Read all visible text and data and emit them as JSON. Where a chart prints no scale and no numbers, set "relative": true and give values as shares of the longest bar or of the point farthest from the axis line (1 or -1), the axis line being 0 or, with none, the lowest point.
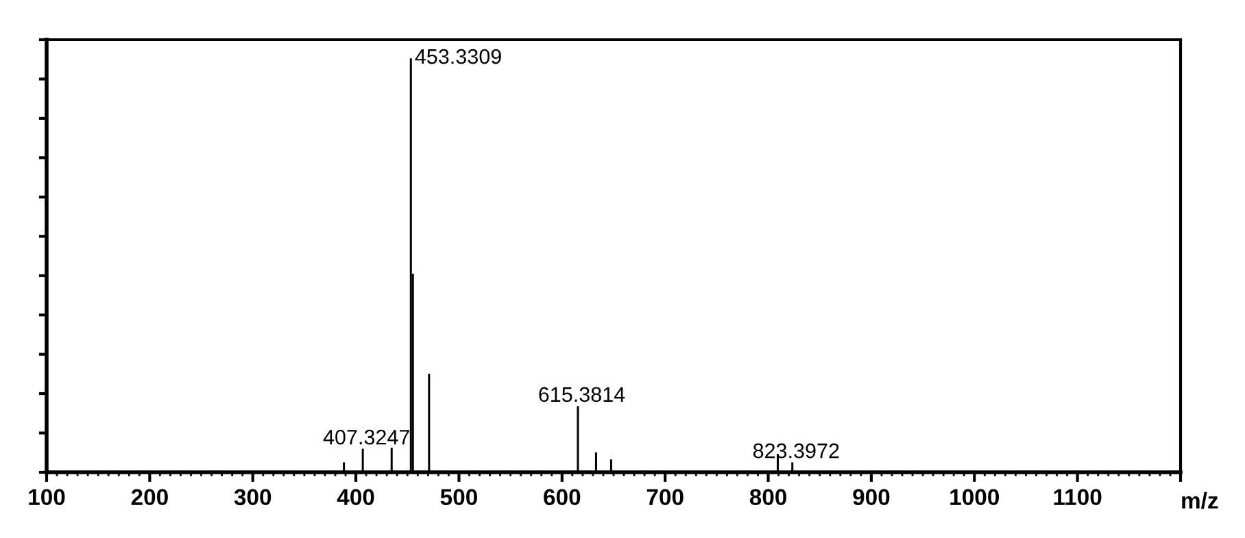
{
  "chart_data": {
    "type": "bar",
    "relative": true,
    "xlabel": "m/z",
    "x": [
      388.4,
      406.7,
      434.7,
      453.3309,
      455.3,
      471.0,
      615.3814,
      633.0,
      647.6,
      809.3,
      823.3972
    ],
    "values": [
      0.024,
      0.057,
      0.059,
      1,
      0.48,
      0.238,
      0.16,
      0.048,
      0.031,
      0.044,
      0.024
    ],
    "color": "#000000",
    "xlim": [
      100,
      1200
    ],
    "xticks": [
      100,
      200,
      300,
      400,
      500,
      600,
      700,
      800,
      900,
      1000,
      1100,
      {
        "value": 1200,
        "label": null
      }
    ],
    "annotations": [
      {
        "text": "407.3247",
        "x": 406.7,
        "y": 0.057
      },
      {
        "text": "453.3309",
        "x": 453.3309,
        "y": 1
      },
      {
        "text": "615.3814",
        "x": 615.3814,
        "y": 0.16
      },
      {
        "text": "823.3972",
        "x": 823.3972,
        "y": 0.024
      }
    ],
    "grid": false
  }
}
